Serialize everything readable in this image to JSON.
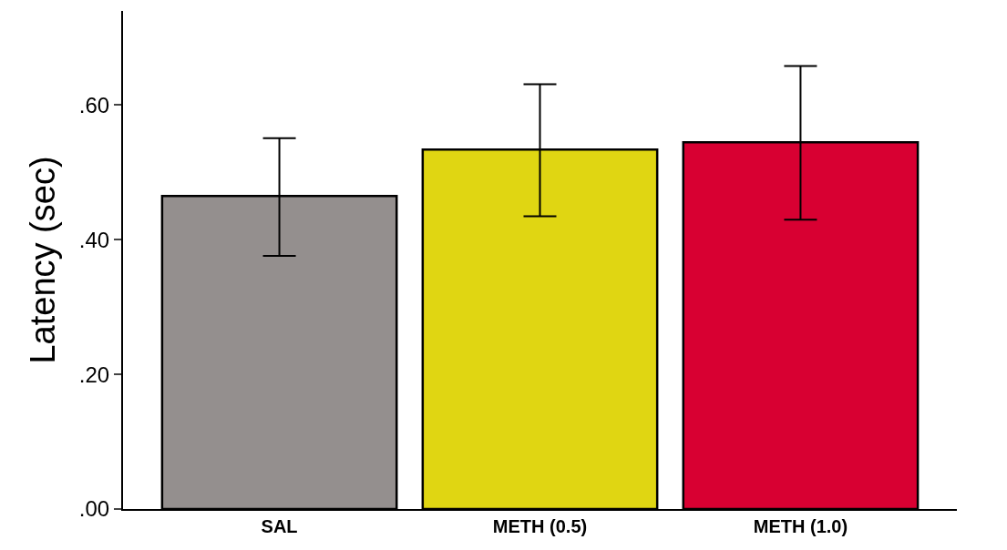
{
  "chart_data": {
    "type": "bar",
    "ylabel": "Latency (sec)",
    "categories": [
      "SAL",
      "METH (0.5)",
      "METH (1.0)"
    ],
    "values": [
      0.465,
      0.534,
      0.545
    ],
    "colors": [
      "#948f8e",
      "#e0d612",
      "#d80032"
    ],
    "errors": [
      [
        0.376,
        0.551
      ],
      [
        0.435,
        0.631
      ],
      [
        0.43,
        0.658
      ]
    ],
    "ylim": [
      0,
      0.74
    ],
    "yticks": [
      {
        "value": 0,
        "label": ".00"
      },
      {
        "value": 0.2,
        "label": ".20"
      },
      {
        "value": 0.4,
        "label": ".40"
      },
      {
        "value": 0.6,
        "label": ".60"
      }
    ],
    "tick_labels": "xy"
  }
}
